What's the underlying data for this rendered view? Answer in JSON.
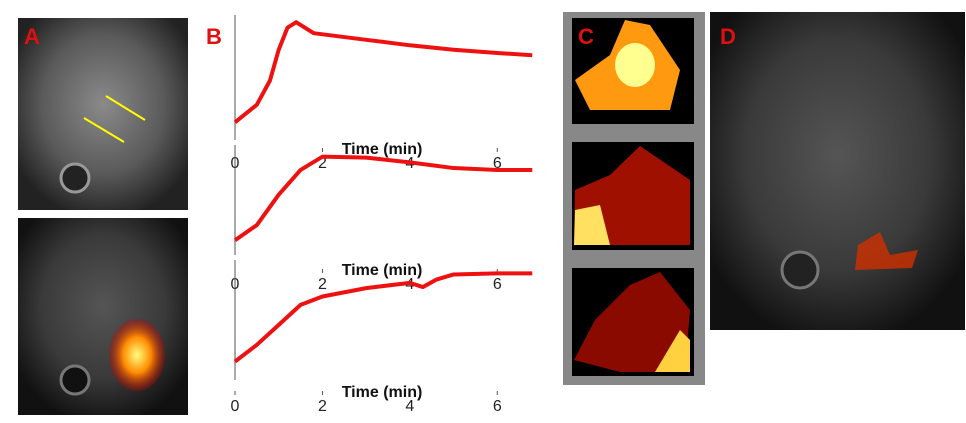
{
  "panels": {
    "a": "A",
    "b": "B",
    "c": "C",
    "d": "D"
  },
  "chart_data": [
    {
      "type": "line",
      "xlabel": "Time (min)",
      "xlim": [
        0,
        7
      ],
      "xticks": [
        0,
        2,
        4,
        6
      ],
      "ylim": [
        0,
        1
      ],
      "series": [
        {
          "color": "#ee1111",
          "x": [
            0,
            0.5,
            0.8,
            1.0,
            1.2,
            1.4,
            1.8,
            3,
            4,
            5,
            6,
            6.8
          ],
          "values": [
            0.07,
            0.23,
            0.45,
            0.73,
            0.93,
            0.98,
            0.88,
            0.82,
            0.77,
            0.73,
            0.7,
            0.68
          ]
        }
      ]
    },
    {
      "type": "line",
      "xlabel": "Time (min)",
      "xlim": [
        0,
        7
      ],
      "xticks": [
        0,
        2,
        4,
        6
      ],
      "ylim": [
        0,
        1
      ],
      "series": [
        {
          "color": "#ee1111",
          "x": [
            0,
            0.5,
            1,
            1.5,
            2,
            3,
            4,
            5,
            6,
            6.8
          ],
          "values": [
            0.05,
            0.21,
            0.53,
            0.79,
            0.93,
            0.92,
            0.87,
            0.81,
            0.79,
            0.79
          ]
        }
      ]
    },
    {
      "type": "line",
      "xlabel": "Time (min)",
      "xlim": [
        0,
        7
      ],
      "xticks": [
        0,
        2,
        4,
        6
      ],
      "ylim": [
        0,
        1
      ],
      "series": [
        {
          "color": "#ee1111",
          "x": [
            0,
            0.5,
            1,
            1.5,
            2,
            3,
            4,
            4.3,
            4.6,
            5,
            6,
            6.8
          ],
          "values": [
            0.08,
            0.24,
            0.43,
            0.62,
            0.7,
            0.78,
            0.83,
            0.79,
            0.86,
            0.91,
            0.92,
            0.92
          ]
        }
      ]
    }
  ]
}
